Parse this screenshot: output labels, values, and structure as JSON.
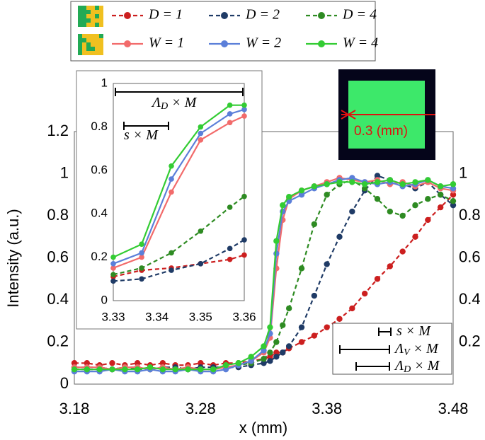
{
  "chart_data": [
    {
      "type": "line",
      "xlabel": "x (mm)",
      "ylabel": "Intensity (a.u.)",
      "x": [
        3.18,
        3.19,
        3.2,
        3.21,
        3.22,
        3.23,
        3.24,
        3.25,
        3.26,
        3.27,
        3.28,
        3.29,
        3.3,
        3.31,
        3.32,
        3.33,
        3.335,
        3.34,
        3.345,
        3.35,
        3.36,
        3.37,
        3.38,
        3.39,
        3.4,
        3.41,
        3.42,
        3.43,
        3.44,
        3.45,
        3.46,
        3.47,
        3.48
      ],
      "series": [
        {
          "name": "D = 1",
          "color": "#cc1f1f",
          "style": "dashed",
          "values": [
            0.1,
            0.1,
            0.09,
            0.1,
            0.09,
            0.1,
            0.09,
            0.1,
            0.09,
            0.09,
            0.1,
            0.09,
            0.1,
            0.1,
            0.11,
            0.12,
            0.13,
            0.15,
            0.15,
            0.17,
            0.2,
            0.23,
            0.27,
            0.31,
            0.36,
            0.43,
            0.5,
            0.56,
            0.63,
            0.7,
            0.78,
            0.84,
            0.9
          ]
        },
        {
          "name": "D = 2",
          "color": "#1f3b66",
          "style": "dashed",
          "values": [
            0.08,
            0.08,
            0.08,
            0.07,
            0.08,
            0.08,
            0.07,
            0.08,
            0.08,
            0.07,
            0.08,
            0.08,
            0.08,
            0.08,
            0.09,
            0.1,
            0.11,
            0.13,
            0.15,
            0.18,
            0.27,
            0.42,
            0.57,
            0.7,
            0.82,
            0.92,
            0.99,
            0.97,
            0.95,
            0.93,
            0.96,
            0.9,
            0.85
          ]
        },
        {
          "name": "D = 4",
          "color": "#2e8b22",
          "style": "dashed",
          "values": [
            0.07,
            0.07,
            0.07,
            0.07,
            0.08,
            0.07,
            0.07,
            0.08,
            0.07,
            0.07,
            0.07,
            0.07,
            0.08,
            0.09,
            0.1,
            0.12,
            0.15,
            0.2,
            0.28,
            0.36,
            0.55,
            0.76,
            0.9,
            0.95,
            0.97,
            0.93,
            0.88,
            0.82,
            0.8,
            0.85,
            0.88,
            0.9,
            0.87
          ]
        },
        {
          "name": "W = 1",
          "color": "#f26b6b",
          "style": "solid",
          "values": [
            0.08,
            0.08,
            0.08,
            0.07,
            0.08,
            0.08,
            0.07,
            0.08,
            0.07,
            0.08,
            0.07,
            0.07,
            0.08,
            0.09,
            0.11,
            0.15,
            0.22,
            0.55,
            0.78,
            0.88,
            0.92,
            0.94,
            0.96,
            0.98,
            0.97,
            0.96,
            0.97,
            0.95,
            0.96,
            0.94,
            0.96,
            0.93,
            0.92
          ]
        },
        {
          "name": "W = 2",
          "color": "#5b7fd9",
          "style": "solid",
          "values": [
            0.06,
            0.06,
            0.06,
            0.07,
            0.06,
            0.06,
            0.07,
            0.06,
            0.06,
            0.07,
            0.06,
            0.06,
            0.07,
            0.09,
            0.11,
            0.16,
            0.24,
            0.62,
            0.82,
            0.87,
            0.9,
            0.93,
            0.95,
            0.97,
            0.98,
            0.96,
            0.95,
            0.96,
            0.94,
            0.95,
            0.97,
            0.94,
            0.93
          ]
        },
        {
          "name": "W = 4",
          "color": "#33cc33",
          "style": "solid",
          "values": [
            0.07,
            0.07,
            0.07,
            0.07,
            0.07,
            0.07,
            0.08,
            0.07,
            0.07,
            0.07,
            0.07,
            0.07,
            0.09,
            0.1,
            0.13,
            0.18,
            0.27,
            0.68,
            0.85,
            0.89,
            0.92,
            0.94,
            0.95,
            0.96,
            0.96,
            0.95,
            0.96,
            0.97,
            0.95,
            0.96,
            0.97,
            0.94,
            0.95
          ]
        }
      ],
      "xlim": [
        3.18,
        3.48
      ],
      "xticks": [
        3.18,
        3.28,
        3.38,
        3.48
      ],
      "ylim": [
        0,
        1.2
      ],
      "yticks": [
        0,
        0.2,
        0.4,
        0.6,
        0.8,
        1,
        1.2
      ],
      "y2lim": [
        0,
        1.2
      ],
      "y2ticks": [
        0.2,
        0.4,
        0.6,
        0.8,
        1
      ],
      "image_label": "0.3 (mm)",
      "annotations": [
        [
          "s × M"
        ],
        [
          "Λ",
          "V",
          " × M"
        ],
        [
          "Λ",
          "D",
          " × M"
        ]
      ]
    },
    {
      "type": "line",
      "x": [
        3.33,
        3.3365,
        3.3433,
        3.35,
        3.3567,
        3.36
      ],
      "series": [
        {
          "color": "#cc1f1f",
          "style": "dashed",
          "values": [
            0.11,
            0.14,
            0.15,
            0.17,
            0.19,
            0.21
          ]
        },
        {
          "color": "#1f3b66",
          "style": "dashed",
          "values": [
            0.09,
            0.1,
            0.14,
            0.17,
            0.24,
            0.28
          ]
        },
        {
          "color": "#2e8b22",
          "style": "dashed",
          "values": [
            0.12,
            0.15,
            0.22,
            0.32,
            0.43,
            0.48
          ]
        },
        {
          "color": "#f26b6b",
          "style": "solid",
          "values": [
            0.15,
            0.2,
            0.5,
            0.74,
            0.82,
            0.85
          ]
        },
        {
          "color": "#5b7fd9",
          "style": "solid",
          "values": [
            0.17,
            0.22,
            0.56,
            0.77,
            0.86,
            0.88
          ]
        },
        {
          "color": "#33cc33",
          "style": "solid",
          "values": [
            0.2,
            0.26,
            0.62,
            0.8,
            0.9,
            0.9
          ]
        }
      ],
      "xlim": [
        3.33,
        3.36
      ],
      "xticks": [
        3.33,
        3.34,
        3.35,
        3.36
      ],
      "ylim": [
        0,
        1
      ],
      "yticks": [
        0,
        0.2,
        0.4,
        0.6,
        0.8,
        1
      ],
      "annotations": [
        [
          "Λ",
          "D",
          " × M"
        ],
        [
          "s × M"
        ]
      ]
    }
  ]
}
